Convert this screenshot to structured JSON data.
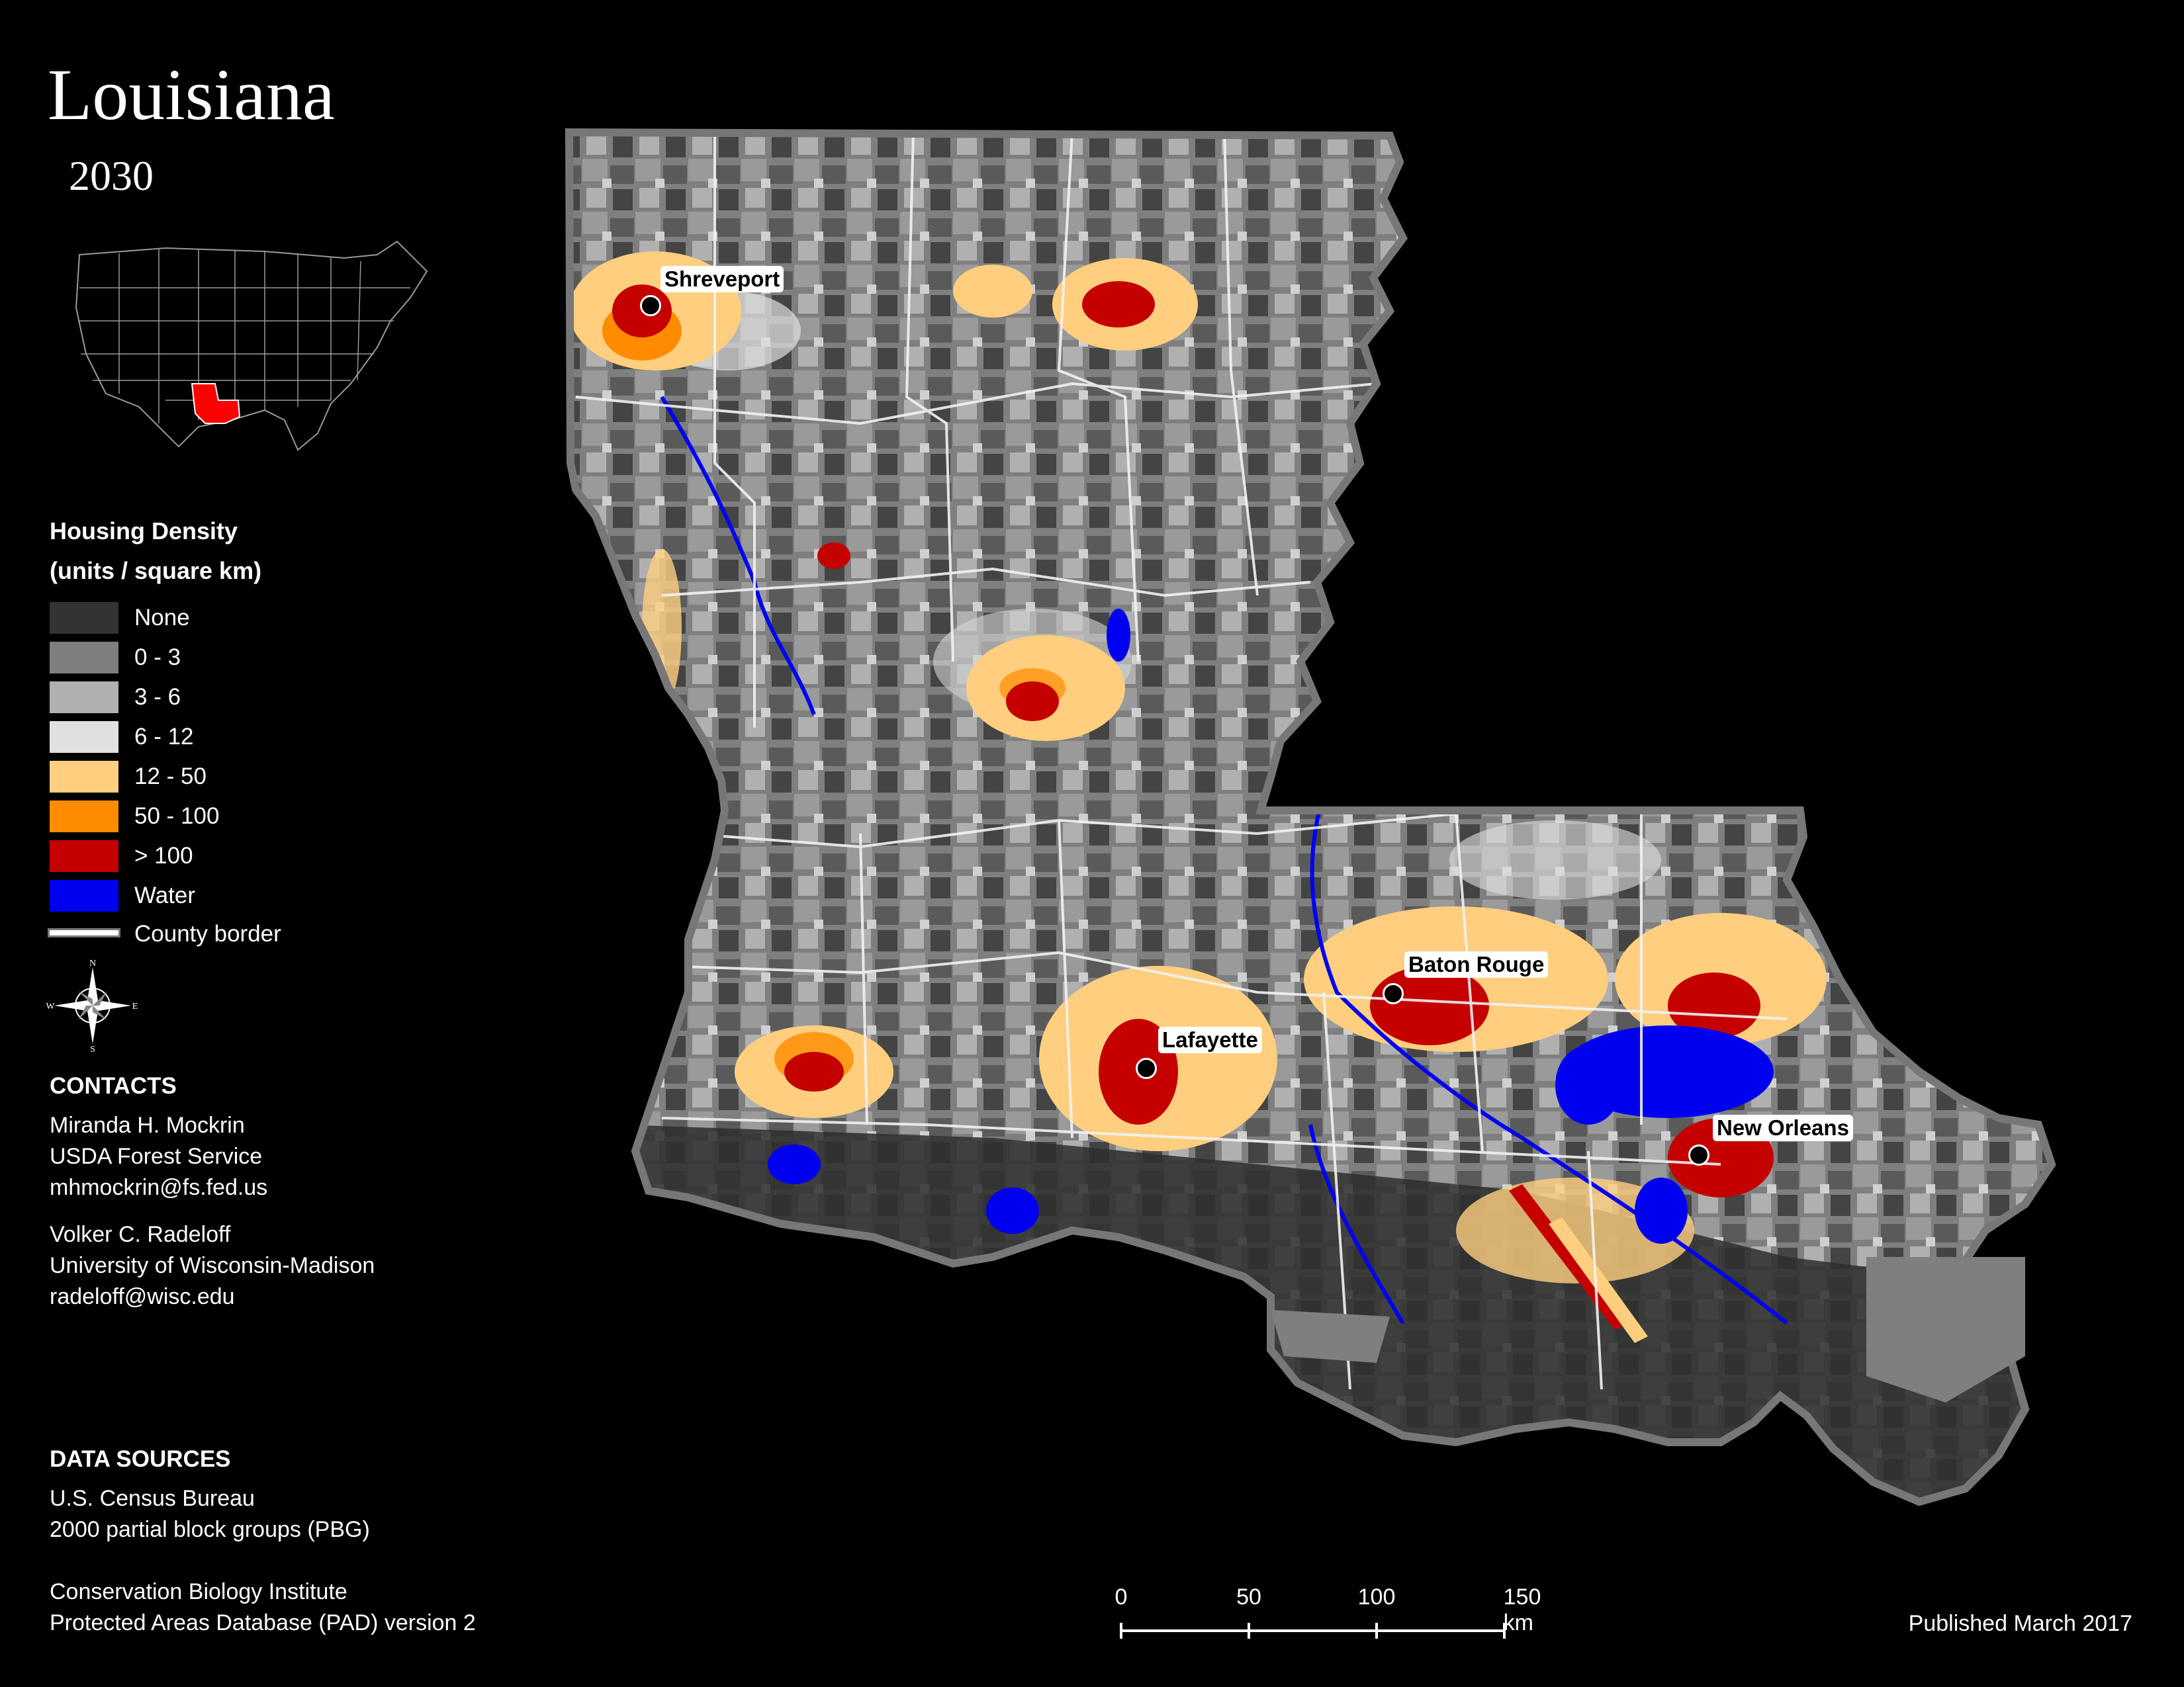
{
  "header": {
    "title": "Louisiana",
    "subtitle": "2030"
  },
  "legend": {
    "title_line1": "Housing Density",
    "title_line2": "(units / square km)",
    "items": [
      {
        "label": "None",
        "color": "#333333"
      },
      {
        "label": "0 - 3",
        "color": "#7f7f7f"
      },
      {
        "label": "3 - 6",
        "color": "#b0b0b0"
      },
      {
        "label": "6 - 12",
        "color": "#e0e0e0"
      },
      {
        "label": "12 - 50",
        "color": "#ffcf7f"
      },
      {
        "label": "50 - 100",
        "color": "#ff8c00"
      },
      {
        "label": "> 100",
        "color": "#c40000"
      },
      {
        "label": "Water",
        "color": "#0000f0"
      }
    ],
    "border_label": "County border"
  },
  "compass": {
    "n": "N",
    "s": "S",
    "e": "E",
    "w": "W"
  },
  "contacts": {
    "heading": "CONTACTS",
    "people": [
      {
        "name": "Miranda H. Mockrin",
        "org": "USDA Forest Service",
        "email": "mhmockrin@fs.fed.us"
      },
      {
        "name": "Volker C. Radeloff",
        "org": "University of Wisconsin-Madison",
        "email": "radeloff@wisc.edu"
      }
    ]
  },
  "data_sources": {
    "heading": "DATA SOURCES",
    "lines": [
      "U.S. Census Bureau",
      "2000 partial block groups (PBG)",
      "Conservation Biology Institute",
      "Protected Areas Database (PAD) version 2"
    ]
  },
  "cities": [
    {
      "name": "Shreveport"
    },
    {
      "name": "Baton Rouge"
    },
    {
      "name": "Lafayette"
    },
    {
      "name": "New Orleans"
    }
  ],
  "scale": {
    "ticks": [
      "0",
      "50",
      "100",
      "150 km"
    ]
  },
  "footer": {
    "published": "Published March 2017"
  }
}
